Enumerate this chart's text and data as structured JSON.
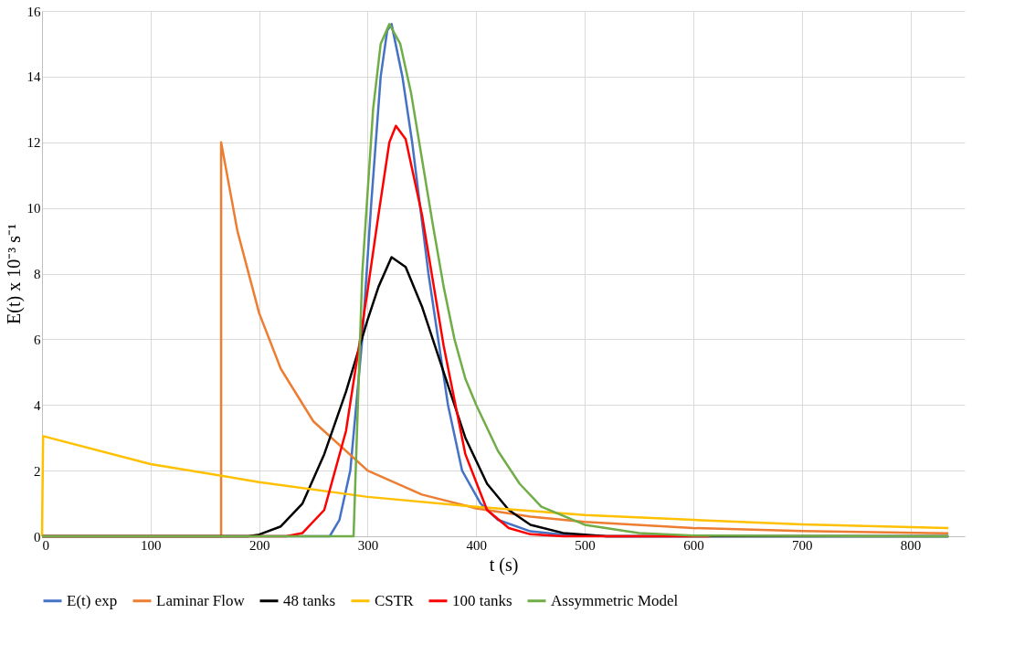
{
  "chart_data": {
    "type": "line",
    "xlabel": "t (s)",
    "ylabel": "E(t) x 10⁻³ s⁻¹",
    "xlim": [
      0,
      850
    ],
    "xticks": [
      0,
      100,
      200,
      300,
      400,
      500,
      600,
      700,
      800
    ],
    "ylim": [
      0,
      16
    ],
    "yticks": [
      0,
      2,
      4,
      6,
      8,
      10,
      12,
      14,
      16
    ],
    "grid": true,
    "legend": "bottom",
    "line_style": "solid",
    "series": [
      {
        "name": "E(t) exp",
        "color": "#4472c4",
        "x": [
          0,
          265,
          274,
          284,
          295,
          303,
          312,
          318,
          322,
          332,
          341,
          356,
          374,
          387,
          404,
          420,
          450,
          480,
          520,
          835
        ],
        "values": [
          0,
          0,
          0.5,
          2,
          6,
          10,
          14,
          15.4,
          15.6,
          14,
          12,
          8,
          4,
          2,
          1,
          0.5,
          0.15,
          0.05,
          0,
          0
        ]
      },
      {
        "name": "Laminar Flow",
        "color": "#ed7d31",
        "x": [
          0,
          165,
          165,
          180,
          200,
          220,
          250,
          300,
          350,
          400,
          450,
          500,
          600,
          700,
          835
        ],
        "values": [
          0,
          0,
          12,
          9.3,
          6.8,
          5.1,
          3.5,
          2.0,
          1.27,
          0.85,
          0.6,
          0.44,
          0.25,
          0.16,
          0.09
        ]
      },
      {
        "name": "48 tanks",
        "color": "#000000",
        "x": [
          0,
          190,
          200,
          220,
          240,
          260,
          280,
          300,
          310,
          322,
          335,
          350,
          370,
          390,
          410,
          430,
          450,
          480,
          520,
          835
        ],
        "values": [
          0,
          0,
          0.05,
          0.3,
          1.0,
          2.5,
          4.4,
          6.6,
          7.6,
          8.5,
          8.2,
          7.0,
          5.0,
          3.0,
          1.6,
          0.8,
          0.35,
          0.1,
          0,
          0
        ]
      },
      {
        "name": "CSTR",
        "color": "#ffc000",
        "x": [
          0,
          1,
          100,
          200,
          300,
          400,
          500,
          600,
          700,
          835
        ],
        "values": [
          0,
          3.05,
          2.2,
          1.65,
          1.2,
          0.9,
          0.65,
          0.5,
          0.36,
          0.25
        ]
      },
      {
        "name": "100 tanks",
        "color": "#ff0000",
        "x": [
          0,
          225,
          240,
          260,
          280,
          300,
          310,
          320,
          326,
          335,
          350,
          370,
          390,
          410,
          430,
          450,
          480,
          615
        ],
        "values": [
          0,
          0,
          0.1,
          0.8,
          3.2,
          7.5,
          9.8,
          12.0,
          12.5,
          12.1,
          9.8,
          5.8,
          2.5,
          0.8,
          0.25,
          0.06,
          0,
          0
        ]
      },
      {
        "name": "Assymmetric Model",
        "color": "#70ad47",
        "x": [
          0,
          287,
          290,
          295,
          305,
          312,
          320,
          330,
          340,
          350,
          360,
          370,
          380,
          390,
          400,
          420,
          440,
          460,
          500,
          550,
          600,
          835
        ],
        "values": [
          0,
          0,
          3,
          8,
          13,
          15,
          15.6,
          15.0,
          13.5,
          11.5,
          9.5,
          7.6,
          6.0,
          4.8,
          4.0,
          2.6,
          1.6,
          0.9,
          0.35,
          0.1,
          0.02,
          0
        ]
      }
    ]
  }
}
